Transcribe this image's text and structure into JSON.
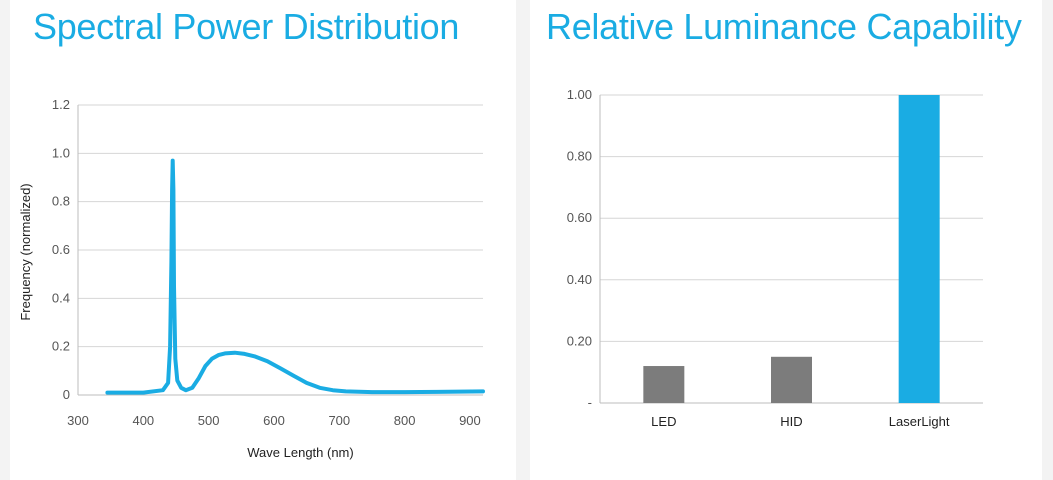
{
  "theme": {
    "accent": "#1aace3",
    "bar_gray": "#7c7c7c",
    "grid": "#d6d6d6",
    "axis": "#bdbdbd",
    "tick_text": "#555555",
    "label_text": "#222222",
    "background_frame": "#f3f3f3"
  },
  "chart_data": [
    {
      "type": "line",
      "title": "Spectral Power Distribution",
      "xlabel": "Wave Length (nm)",
      "ylabel": "Frequency (normalized)",
      "xlim": [
        300,
        920
      ],
      "ylim": [
        0,
        1.2
      ],
      "x_ticks": [
        "300",
        "400",
        "500",
        "600",
        "700",
        "800",
        "900"
      ],
      "y_ticks": [
        "0",
        "0.2",
        "0.4",
        "0.6",
        "0.8",
        "1.0",
        "1.2"
      ],
      "grid": true,
      "series": [
        {
          "x": [
            345,
            400,
            430,
            438,
            441,
            443,
            444,
            445,
            446,
            447,
            449,
            452,
            458,
            465,
            475,
            485,
            495,
            505,
            515,
            525,
            540,
            555,
            570,
            590,
            610,
            630,
            650,
            670,
            690,
            710,
            750,
            800,
            850,
            920
          ],
          "y": [
            0.01,
            0.01,
            0.02,
            0.05,
            0.2,
            0.55,
            0.85,
            0.97,
            0.85,
            0.45,
            0.15,
            0.06,
            0.03,
            0.02,
            0.03,
            0.07,
            0.12,
            0.15,
            0.165,
            0.172,
            0.175,
            0.17,
            0.16,
            0.14,
            0.11,
            0.08,
            0.05,
            0.03,
            0.02,
            0.015,
            0.012,
            0.012,
            0.013,
            0.015
          ]
        }
      ]
    },
    {
      "type": "bar",
      "title": "Relative Luminance Capability",
      "categories": [
        "LED",
        "HID",
        "LaserLight"
      ],
      "values": [
        0.12,
        0.15,
        1.0
      ],
      "colors": [
        "#7c7c7c",
        "#7c7c7c",
        "#1aace3"
      ],
      "ylim": [
        0,
        1.0
      ],
      "y_ticks": [
        "-",
        "0.20",
        "0.40",
        "0.60",
        "0.80",
        "1.00"
      ],
      "grid": true
    }
  ]
}
